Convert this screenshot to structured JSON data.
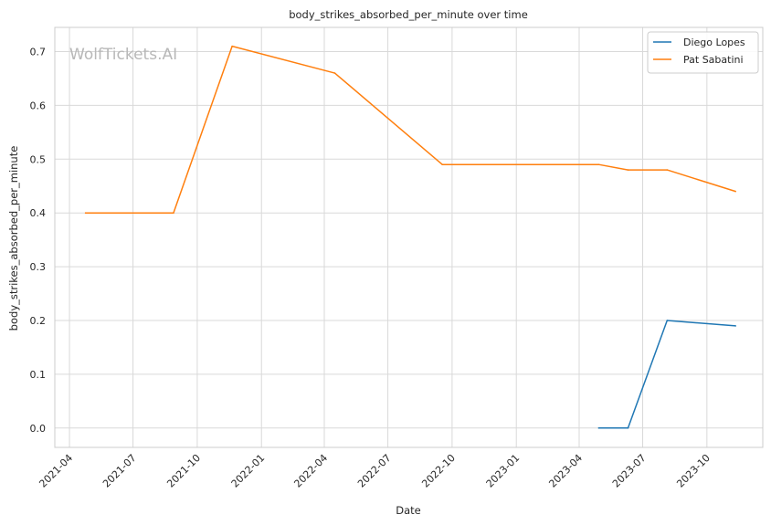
{
  "chart_data": {
    "type": "line",
    "title": "body_strikes_absorbed_per_minute over time",
    "xlabel": "Date",
    "ylabel": "body_strikes_absorbed_per_minute",
    "watermark": "WolfTickets.AI",
    "grid": true,
    "legend_position": "top-right",
    "xlim": [
      "2021-03-11",
      "2023-12-20"
    ],
    "ylim": [
      -0.036,
      0.745
    ],
    "x_ticks": [
      "2021-04",
      "2021-07",
      "2021-10",
      "2022-01",
      "2022-04",
      "2022-07",
      "2022-10",
      "2023-01",
      "2023-04",
      "2023-07",
      "2023-10"
    ],
    "y_ticks": [
      "0.0",
      "0.1",
      "0.2",
      "0.3",
      "0.4",
      "0.5",
      "0.6",
      "0.7"
    ],
    "series": [
      {
        "name": "Diego Lopes",
        "color": "#1f77b4",
        "points": [
          {
            "x": "2023-04-29",
            "y": 0.0
          },
          {
            "x": "2023-06-10",
            "y": 0.0
          },
          {
            "x": "2023-08-05",
            "y": 0.2
          },
          {
            "x": "2023-11-11",
            "y": 0.19
          }
        ]
      },
      {
        "name": "Pat Sabatini",
        "color": "#ff7f0e",
        "points": [
          {
            "x": "2021-04-24",
            "y": 0.4
          },
          {
            "x": "2021-08-28",
            "y": 0.4
          },
          {
            "x": "2021-11-20",
            "y": 0.71
          },
          {
            "x": "2022-04-16",
            "y": 0.66
          },
          {
            "x": "2022-09-17",
            "y": 0.49
          },
          {
            "x": "2023-04-29",
            "y": 0.49
          },
          {
            "x": "2023-06-10",
            "y": 0.48
          },
          {
            "x": "2023-08-05",
            "y": 0.48
          },
          {
            "x": "2023-11-11",
            "y": 0.44
          }
        ]
      }
    ]
  }
}
